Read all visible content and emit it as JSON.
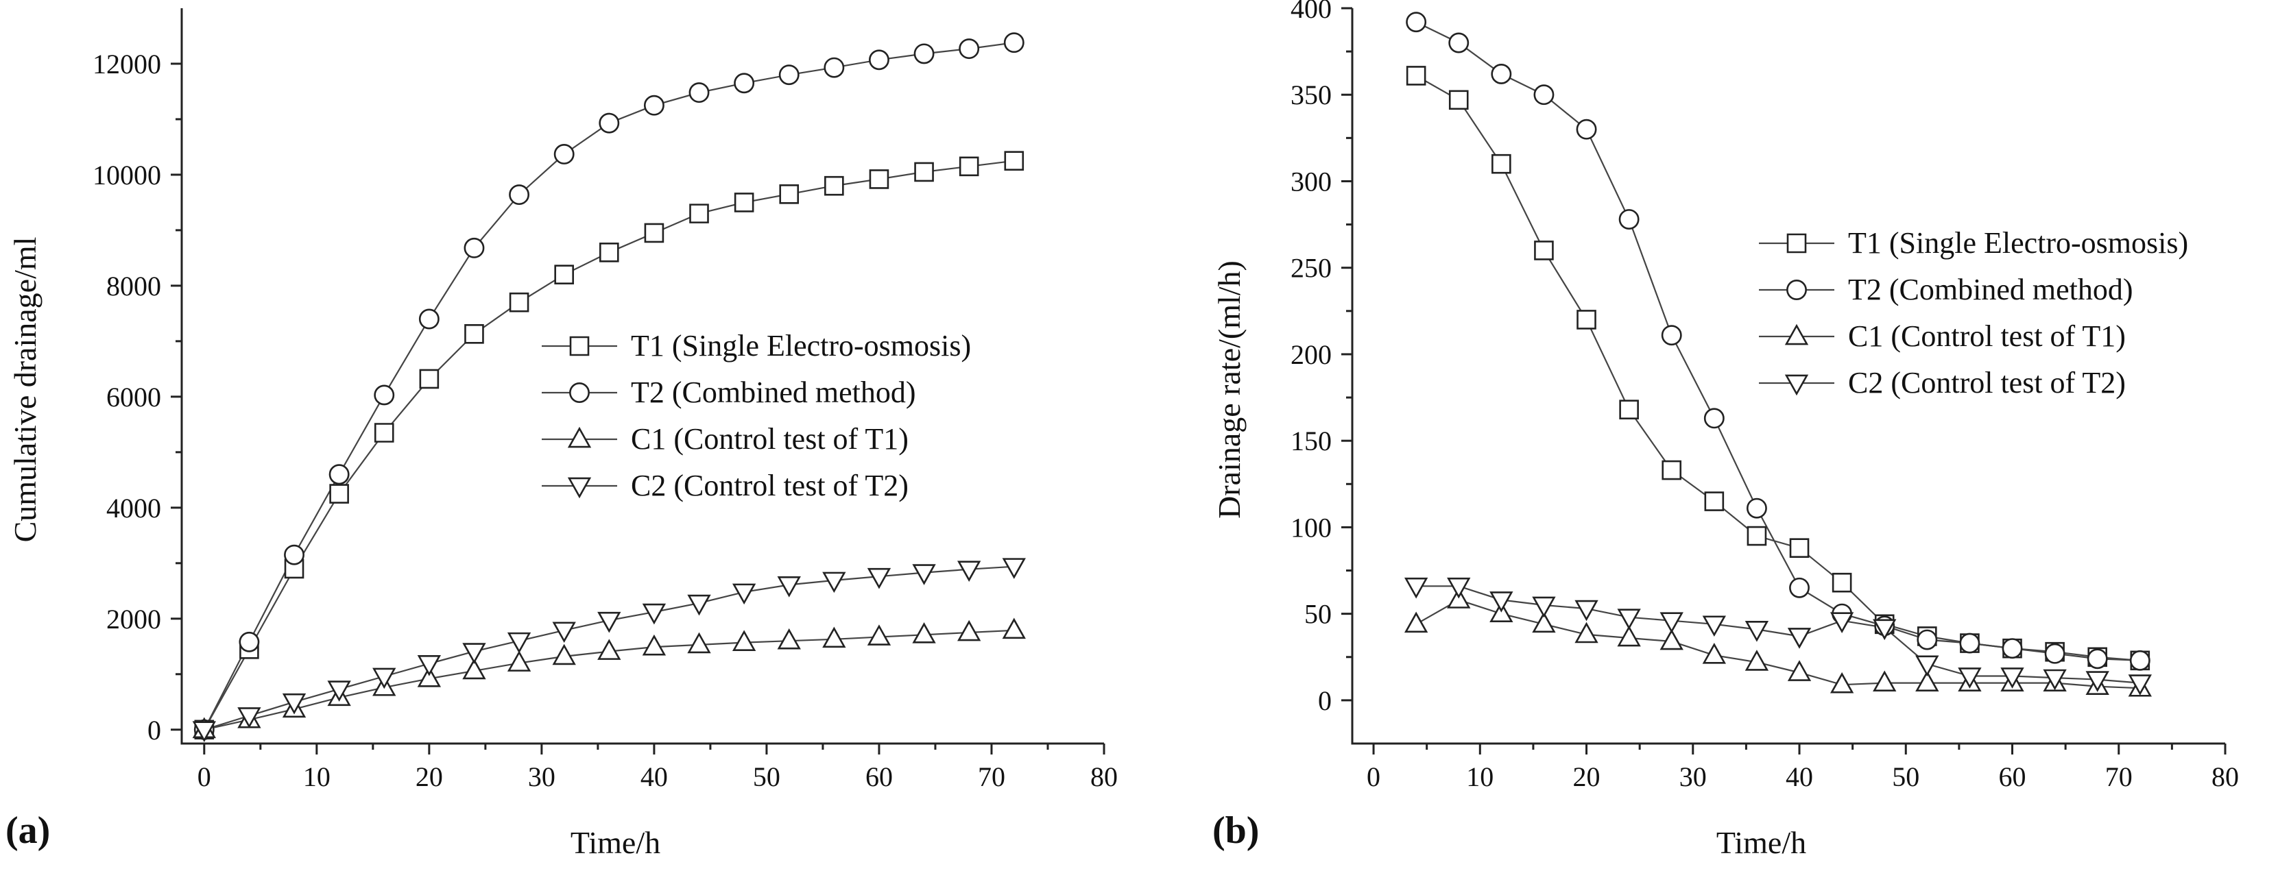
{
  "chart_data": [
    {
      "type": "line",
      "panel_label": "(a)",
      "xlabel": "Time/h",
      "ylabel": "Cumulative drainage/ml",
      "xlim": [
        -2,
        80
      ],
      "ylim": [
        -250,
        13000
      ],
      "xticks": [
        0,
        10,
        20,
        30,
        40,
        50,
        60,
        70,
        80
      ],
      "xtick_labels": [
        "0",
        "10",
        "20",
        "30",
        "40",
        "50",
        "60",
        "70",
        "80"
      ],
      "yticks": [
        0,
        2000,
        4000,
        6000,
        8000,
        10000,
        12000
      ],
      "ytick_labels": [
        "0",
        "2000",
        "4000",
        "6000",
        "8000",
        "10000",
        "12000"
      ],
      "legend_position": "center-right",
      "series": [
        {
          "name": "T1 (Single Electro-osmosis)",
          "marker": "square",
          "x": [
            0,
            4,
            8,
            12,
            16,
            20,
            24,
            28,
            32,
            36,
            40,
            44,
            48,
            52,
            56,
            60,
            64,
            68,
            72
          ],
          "y": [
            0,
            1450,
            2900,
            4250,
            5350,
            6320,
            7130,
            7700,
            8200,
            8600,
            8950,
            9300,
            9500,
            9650,
            9800,
            9920,
            10050,
            10150,
            10250
          ]
        },
        {
          "name": "T2 (Combined method)",
          "marker": "circle",
          "x": [
            0,
            4,
            8,
            12,
            16,
            20,
            24,
            28,
            32,
            36,
            40,
            44,
            48,
            52,
            56,
            60,
            64,
            68,
            72
          ],
          "y": [
            0,
            1580,
            3150,
            4600,
            6030,
            7400,
            8680,
            9640,
            10370,
            10930,
            11250,
            11480,
            11650,
            11800,
            11930,
            12070,
            12180,
            12270,
            12380
          ]
        },
        {
          "name": "C1 (Control test of T1)",
          "marker": "triangle-up",
          "x": [
            0,
            4,
            8,
            12,
            16,
            20,
            24,
            28,
            32,
            36,
            40,
            44,
            48,
            52,
            56,
            60,
            64,
            68,
            72
          ],
          "y": [
            0,
            180,
            370,
            580,
            760,
            920,
            1060,
            1200,
            1320,
            1410,
            1490,
            1530,
            1570,
            1600,
            1630,
            1670,
            1710,
            1750,
            1790
          ]
        },
        {
          "name": "C2 (Control test of T2)",
          "marker": "triangle-down",
          "x": [
            0,
            4,
            8,
            12,
            16,
            20,
            24,
            28,
            32,
            36,
            40,
            44,
            48,
            52,
            56,
            60,
            64,
            68,
            72
          ],
          "y": [
            0,
            250,
            500,
            730,
            960,
            1190,
            1410,
            1600,
            1790,
            1970,
            2120,
            2280,
            2480,
            2610,
            2690,
            2760,
            2830,
            2890,
            2940
          ]
        }
      ]
    },
    {
      "type": "line",
      "panel_label": "(b)",
      "xlabel": "Time/h",
      "ylabel": "Drainage rate/(ml/h)",
      "xlim": [
        -2,
        80
      ],
      "ylim": [
        -25,
        400
      ],
      "xticks": [
        0,
        10,
        20,
        30,
        40,
        50,
        60,
        70,
        80
      ],
      "xtick_labels": [
        "0",
        "10",
        "20",
        "30",
        "40",
        "50",
        "60",
        "70",
        "80"
      ],
      "yticks": [
        0,
        50,
        100,
        150,
        200,
        250,
        300,
        350,
        400
      ],
      "ytick_labels": [
        "0",
        "50",
        "100",
        "150",
        "200",
        "250",
        "300",
        "350",
        "400"
      ],
      "legend_position": "center-right",
      "series": [
        {
          "name": "T1 (Single Electro-osmosis)",
          "marker": "square",
          "x": [
            4,
            8,
            12,
            16,
            20,
            24,
            28,
            32,
            36,
            40,
            44,
            48,
            52,
            56,
            60,
            64,
            68,
            72
          ],
          "y": [
            361,
            347,
            310,
            260,
            220,
            168,
            133,
            115,
            95,
            88,
            68,
            44,
            37,
            33,
            30,
            28,
            25,
            23
          ]
        },
        {
          "name": "T2 (Combined method)",
          "marker": "circle",
          "x": [
            4,
            8,
            12,
            16,
            20,
            24,
            28,
            32,
            36,
            40,
            44,
            48,
            52,
            56,
            60,
            64,
            68,
            72
          ],
          "y": [
            392,
            380,
            362,
            350,
            330,
            278,
            211,
            163,
            111,
            65,
            50,
            43,
            35,
            33,
            30,
            27,
            24,
            23
          ]
        },
        {
          "name": "C1 (Control test of T1)",
          "marker": "triangle-up",
          "x": [
            4,
            8,
            12,
            16,
            20,
            24,
            28,
            32,
            36,
            40,
            44,
            48,
            52,
            56,
            60,
            64,
            68,
            72
          ],
          "y": [
            44,
            58,
            50,
            44,
            38,
            36,
            34,
            26,
            22,
            16,
            9,
            10,
            10,
            10,
            10,
            10,
            8,
            7
          ]
        },
        {
          "name": "C2 (Control test of T2)",
          "marker": "triangle-down",
          "x": [
            4,
            8,
            12,
            16,
            20,
            24,
            28,
            32,
            36,
            40,
            44,
            48,
            52,
            56,
            60,
            64,
            68,
            72
          ],
          "y": [
            66,
            66,
            58,
            55,
            53,
            48,
            46,
            44,
            41,
            37,
            46,
            42,
            21,
            14,
            14,
            13,
            12,
            10
          ]
        }
      ]
    }
  ]
}
